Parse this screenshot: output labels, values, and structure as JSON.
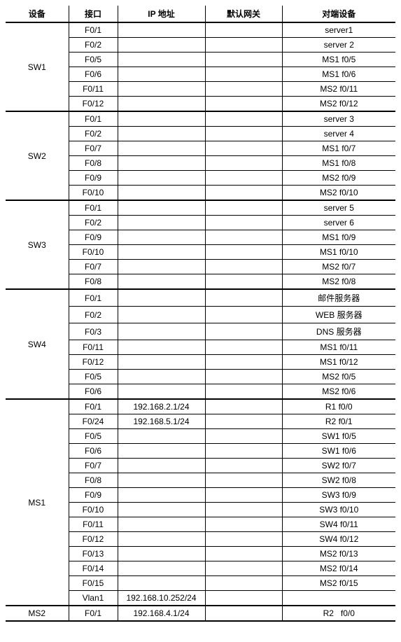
{
  "headers": {
    "device": "设备",
    "interface": "接口",
    "ip": "IP 地址",
    "gateway": "默认网关",
    "peer": "对端设备"
  },
  "groups": [
    {
      "device": "SW1",
      "rows": [
        {
          "iface": "F0/1",
          "ip": "",
          "gw": "",
          "peer": "server1"
        },
        {
          "iface": "F0/2",
          "ip": "",
          "gw": "",
          "peer": "server 2"
        },
        {
          "iface": "F0/5",
          "ip": "",
          "gw": "",
          "peer": "MS1 f0/5"
        },
        {
          "iface": "F0/6",
          "ip": "",
          "gw": "",
          "peer": "MS1 f0/6"
        },
        {
          "iface": "F0/11",
          "ip": "",
          "gw": "",
          "peer": "MS2 f0/11"
        },
        {
          "iface": "F0/12",
          "ip": "",
          "gw": "",
          "peer": "MS2 f0/12"
        }
      ]
    },
    {
      "device": "SW2",
      "rows": [
        {
          "iface": "F0/1",
          "ip": "",
          "gw": "",
          "peer": "server 3"
        },
        {
          "iface": "F0/2",
          "ip": "",
          "gw": "",
          "peer": "server 4"
        },
        {
          "iface": "F0/7",
          "ip": "",
          "gw": "",
          "peer": "MS1 f0/7"
        },
        {
          "iface": "F0/8",
          "ip": "",
          "gw": "",
          "peer": "MS1 f0/8"
        },
        {
          "iface": "F0/9",
          "ip": "",
          "gw": "",
          "peer": "MS2 f0/9"
        },
        {
          "iface": "F0/10",
          "ip": "",
          "gw": "",
          "peer": "MS2 f0/10"
        }
      ]
    },
    {
      "device": "SW3",
      "rows": [
        {
          "iface": "F0/1",
          "ip": "",
          "gw": "",
          "peer": "server 5"
        },
        {
          "iface": "F0/2",
          "ip": "",
          "gw": "",
          "peer": "server 6"
        },
        {
          "iface": "F0/9",
          "ip": "",
          "gw": "",
          "peer": "MS1 f0/9"
        },
        {
          "iface": "F0/10",
          "ip": "",
          "gw": "",
          "peer": "MS1 f0/10"
        },
        {
          "iface": "F0/7",
          "ip": "",
          "gw": "",
          "peer": "MS2 f0/7"
        },
        {
          "iface": "F0/8",
          "ip": "",
          "gw": "",
          "peer": "MS2 f0/8"
        }
      ]
    },
    {
      "device": "SW4",
      "rows": [
        {
          "iface": "F0/1",
          "ip": "",
          "gw": "",
          "peer": "邮件服务器"
        },
        {
          "iface": "F0/2",
          "ip": "",
          "gw": "",
          "peer": "WEB 服务器"
        },
        {
          "iface": "F0/3",
          "ip": "",
          "gw": "",
          "peer": "DNS 服务器"
        },
        {
          "iface": "F0/11",
          "ip": "",
          "gw": "",
          "peer": "MS1 f0/11"
        },
        {
          "iface": "F0/12",
          "ip": "",
          "gw": "",
          "peer": "MS1 f0/12"
        },
        {
          "iface": "F0/5",
          "ip": "",
          "gw": "",
          "peer": "MS2 f0/5"
        },
        {
          "iface": "F0/6",
          "ip": "",
          "gw": "",
          "peer": "MS2 f0/6"
        }
      ]
    },
    {
      "device": "MS1",
      "rows": [
        {
          "iface": "F0/1",
          "ip": "192.168.2.1/24",
          "gw": "",
          "peer": "R1 f0/0"
        },
        {
          "iface": "F0/24",
          "ip": "192.168.5.1/24",
          "gw": "",
          "peer": "R2 f0/1"
        },
        {
          "iface": "F0/5",
          "ip": "",
          "gw": "",
          "peer": "SW1 f0/5"
        },
        {
          "iface": "F0/6",
          "ip": "",
          "gw": "",
          "peer": "SW1 f0/6"
        },
        {
          "iface": "F0/7",
          "ip": "",
          "gw": "",
          "peer": "SW2 f0/7"
        },
        {
          "iface": "F0/8",
          "ip": "",
          "gw": "",
          "peer": "SW2 f0/8"
        },
        {
          "iface": "F0/9",
          "ip": "",
          "gw": "",
          "peer": "SW3 f0/9"
        },
        {
          "iface": "F0/10",
          "ip": "",
          "gw": "",
          "peer": "SW3 f0/10"
        },
        {
          "iface": "F0/11",
          "ip": "",
          "gw": "",
          "peer": "SW4 f0/11"
        },
        {
          "iface": "F0/12",
          "ip": "",
          "gw": "",
          "peer": "SW4 f0/12"
        },
        {
          "iface": "F0/13",
          "ip": "",
          "gw": "",
          "peer": "MS2 f0/13"
        },
        {
          "iface": "F0/14",
          "ip": "",
          "gw": "",
          "peer": "MS2 f0/14"
        },
        {
          "iface": "F0/15",
          "ip": "",
          "gw": "",
          "peer": "MS2 f0/15"
        },
        {
          "iface": "Vlan1",
          "ip": "192.168.10.252/24",
          "gw": "",
          "peer": ""
        }
      ]
    },
    {
      "device": "MS2",
      "rows": [
        {
          "iface": "F0/1",
          "ip": "192.168.4.1/24",
          "gw": "",
          "peer": "R2   f0/0"
        }
      ]
    }
  ]
}
